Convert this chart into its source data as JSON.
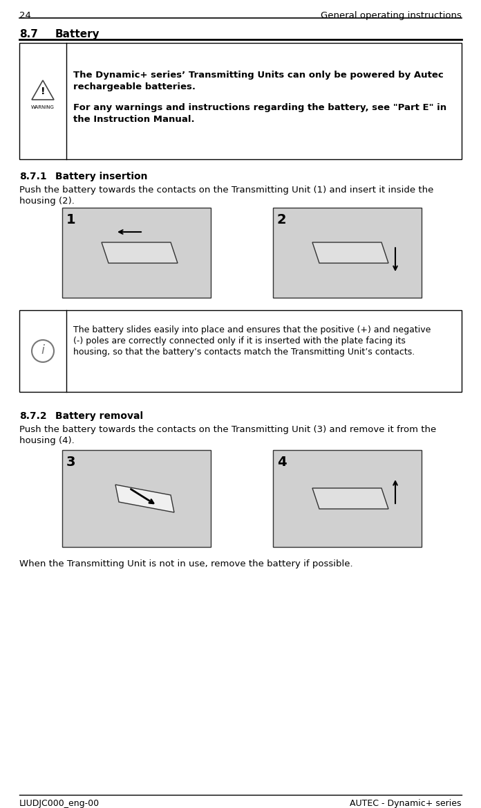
{
  "page_number": "24",
  "header_right": "General operating instructions",
  "footer_left": "LIUDJC000_eng-00",
  "footer_right": "AUTEC - Dynamic+ series",
  "section_num": "8.7",
  "section_name": "Battery",
  "warning_line1": "The Dynamic+ series’ Transmitting Units can only be powered by Autec",
  "warning_line2": "rechargeable batteries.",
  "warning_line3": "For any warnings and instructions regarding the battery, see \"Part E\" in",
  "warning_line4": "the Instruction Manual.",
  "sub1_num": "8.7.1",
  "sub1_name": "Battery insertion",
  "sub1_para1": "Push the battery towards the contacts on the Transmitting Unit (1) and insert it inside the",
  "sub1_para2": "housing (2).",
  "info_line1": "The battery slides easily into place and ensures that the positive (+) and negative",
  "info_line2": "(-) poles are correctly connected only if it is inserted with the plate facing its",
  "info_line3": "housing, so that the battery’s contacts match the Transmitting Unit’s contacts.",
  "sub2_num": "8.7.2",
  "sub2_name": "Battery removal",
  "sub2_para1": "Push the battery towards the contacts on the Transmitting Unit (3) and remove it from the",
  "sub2_para2": "housing (4).",
  "final_note": "When the Transmitting Unit is not in use, remove the battery if possible.",
  "bg_color": "#ffffff",
  "text_color": "#000000",
  "border_color": "#000000",
  "img_bg": "#d8d8d8",
  "img_border": "#555555"
}
